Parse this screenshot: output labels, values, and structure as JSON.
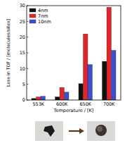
{
  "chart_data": {
    "type": "bar",
    "xlabel": "Temperature / [K]",
    "ylabel": "Loss in TOF / [molecules/sites]",
    "categories": [
      "553K",
      "600K",
      "650K",
      "700K"
    ],
    "series": [
      {
        "name": "4nm",
        "color": "#111111",
        "values": [
          0.5,
          1.0,
          5.2,
          12.3
        ]
      },
      {
        "name": "7nm",
        "color": "#e0262b",
        "values": [
          1.0,
          4.0,
          21.0,
          29.5
        ]
      },
      {
        "name": "10nm",
        "color": "#3a4fd1",
        "values": [
          1.2,
          2.5,
          11.3,
          15.8
        ]
      }
    ],
    "ylim": [
      0,
      30
    ],
    "yticks": [
      0,
      5,
      10,
      15,
      20,
      25,
      30
    ],
    "legend": "upper left",
    "grid": false
  }
}
